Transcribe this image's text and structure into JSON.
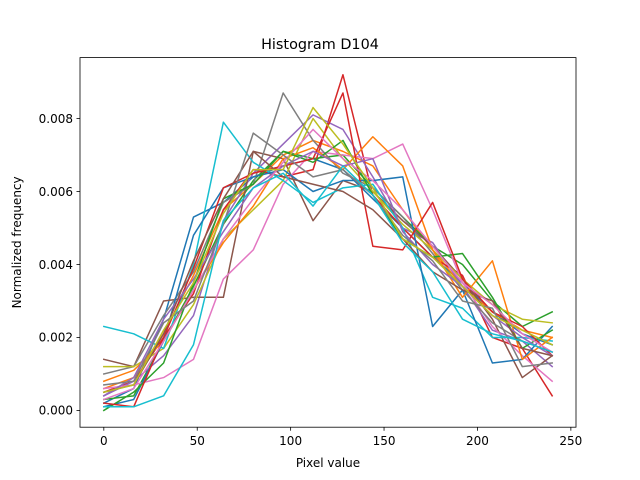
{
  "chart_data": {
    "type": "line",
    "title": "Histogram D104",
    "xlabel": "Pixel value",
    "ylabel": "Normalized frequency",
    "xlim": [
      -12.75,
      252.75
    ],
    "ylim": [
      -0.00046,
      0.00967
    ],
    "grid": false,
    "legend": "none",
    "x": [
      0,
      16,
      32,
      48,
      64,
      80,
      96,
      112,
      128,
      144,
      160,
      176,
      192,
      208,
      224,
      240
    ],
    "xticks": [
      {
        "value": 0,
        "label": "0"
      },
      {
        "value": 50,
        "label": "50"
      },
      {
        "value": 100,
        "label": "100"
      },
      {
        "value": 150,
        "label": "150"
      },
      {
        "value": 200,
        "label": "200"
      },
      {
        "value": 250,
        "label": "250"
      }
    ],
    "yticks": [
      {
        "value": 0.0,
        "label": "0.000"
      },
      {
        "value": 0.002,
        "label": "0.002"
      },
      {
        "value": 0.004,
        "label": "0.004"
      },
      {
        "value": 0.006,
        "label": "0.006"
      },
      {
        "value": 0.008,
        "label": "0.008"
      }
    ],
    "colors": [
      "#1f77b4",
      "#ff7f0e",
      "#2ca02c",
      "#d62728",
      "#9467bd",
      "#8c564b",
      "#e377c2",
      "#7f7f7f",
      "#bcbd22",
      "#17becf"
    ],
    "series": [
      {
        "values": [
          0.0002,
          0.0006,
          0.0025,
          0.0053,
          0.0057,
          0.0064,
          0.0067,
          0.0069,
          0.0066,
          0.0058,
          0.005,
          0.0042,
          0.0035,
          0.0027,
          0.0021,
          0.0018
        ]
      },
      {
        "values": [
          0.0006,
          0.0009,
          0.0021,
          0.0037,
          0.0055,
          0.0062,
          0.007,
          0.0074,
          0.0071,
          0.0067,
          0.0055,
          0.0044,
          0.0034,
          0.0027,
          0.0022,
          0.002
        ]
      },
      {
        "values": [
          0.0003,
          0.0004,
          0.0019,
          0.0034,
          0.0051,
          0.0063,
          0.0071,
          0.0069,
          0.007,
          0.0061,
          0.0053,
          0.0045,
          0.004,
          0.003,
          0.0023,
          0.0027
        ]
      },
      {
        "values": [
          0.0005,
          0.0008,
          0.002,
          0.0032,
          0.0055,
          0.0066,
          0.0064,
          0.0066,
          0.0092,
          0.0059,
          0.005,
          0.0042,
          0.0037,
          0.002,
          0.0017,
          0.0004
        ]
      },
      {
        "values": [
          0.0004,
          0.0008,
          0.0015,
          0.0026,
          0.0052,
          0.0065,
          0.0073,
          0.0081,
          0.0077,
          0.0064,
          0.005,
          0.0046,
          0.0034,
          0.0022,
          0.0019,
          0.0012
        ]
      },
      {
        "values": [
          0.0014,
          0.0012,
          0.003,
          0.0031,
          0.0031,
          0.0071,
          0.0069,
          0.0052,
          0.0063,
          0.006,
          0.0052,
          0.0045,
          0.0036,
          0.0025,
          0.0009,
          0.0015
        ]
      },
      {
        "values": [
          0.0006,
          0.0007,
          0.0009,
          0.0014,
          0.0036,
          0.0044,
          0.0062,
          0.0071,
          0.007,
          0.0069,
          0.0073,
          0.0055,
          0.0035,
          0.0023,
          0.0015,
          0.0008
        ]
      },
      {
        "values": [
          0.001,
          0.0012,
          0.0026,
          0.0038,
          0.0057,
          0.0062,
          0.0087,
          0.0074,
          0.0065,
          0.0061,
          0.0053,
          0.0043,
          0.0033,
          0.0024,
          0.0019,
          0.0016
        ]
      },
      {
        "values": [
          0.0012,
          0.0012,
          0.0017,
          0.0029,
          0.0047,
          0.0055,
          0.0063,
          0.008,
          0.0069,
          0.006,
          0.0051,
          0.0044,
          0.0036,
          0.0029,
          0.0025,
          0.0024
        ]
      },
      {
        "values": [
          0.0023,
          0.0021,
          0.0017,
          0.004,
          0.0079,
          0.0068,
          0.0063,
          0.0057,
          0.0061,
          0.0062,
          0.005,
          0.0031,
          0.0028,
          0.002,
          0.002,
          0.0019
        ]
      },
      {
        "values": [
          0.0001,
          0.0003,
          0.0019,
          0.0048,
          0.0061,
          0.0064,
          0.0066,
          0.006,
          0.0063,
          0.0063,
          0.0064,
          0.0023,
          0.0033,
          0.0013,
          0.0014,
          0.0023
        ]
      },
      {
        "values": [
          0.0008,
          0.0011,
          0.0019,
          0.0033,
          0.0046,
          0.0056,
          0.0069,
          0.0072,
          0.0066,
          0.0075,
          0.0067,
          0.0044,
          0.0031,
          0.0041,
          0.0014,
          0.002
        ]
      },
      {
        "values": [
          0.0,
          0.0005,
          0.0013,
          0.0035,
          0.0058,
          0.0062,
          0.0071,
          0.0068,
          0.0074,
          0.0059,
          0.0047,
          0.0042,
          0.0043,
          0.0031,
          0.0017,
          0.0022
        ]
      },
      {
        "values": [
          0.0002,
          0.0001,
          0.002,
          0.0039,
          0.0061,
          0.0065,
          0.0067,
          0.0069,
          0.0087,
          0.0045,
          0.0044,
          0.0057,
          0.0036,
          0.0027,
          0.0023,
          0.0015
        ]
      },
      {
        "values": [
          0.0004,
          0.0009,
          0.0025,
          0.0036,
          0.0049,
          0.0061,
          0.0067,
          0.0071,
          0.0067,
          0.0069,
          0.0049,
          0.004,
          0.0034,
          0.0026,
          0.002,
          0.0015
        ]
      },
      {
        "values": [
          0.0005,
          0.0007,
          0.0021,
          0.0041,
          0.0058,
          0.0071,
          0.0064,
          0.0062,
          0.006,
          0.0055,
          0.0047,
          0.0038,
          0.0033,
          0.003,
          0.0017,
          0.0015
        ]
      },
      {
        "values": [
          0.0003,
          0.0006,
          0.0019,
          0.0033,
          0.0047,
          0.0058,
          0.0068,
          0.0077,
          0.0069,
          0.0063,
          0.0055,
          0.0045,
          0.0035,
          0.0029,
          0.0021,
          0.0016
        ]
      },
      {
        "values": [
          0.0007,
          0.0008,
          0.0024,
          0.003,
          0.0051,
          0.0076,
          0.007,
          0.0064,
          0.0066,
          0.0059,
          0.0048,
          0.0041,
          0.003,
          0.0028,
          0.0012,
          0.0013
        ]
      },
      {
        "values": [
          0.0005,
          0.0007,
          0.0022,
          0.0035,
          0.0054,
          0.0066,
          0.0066,
          0.0083,
          0.0073,
          0.0061,
          0.0047,
          0.0042,
          0.0034,
          0.0026,
          0.0022,
          0.0018
        ]
      },
      {
        "values": [
          0.0001,
          0.0001,
          0.0004,
          0.0018,
          0.0052,
          0.0061,
          0.0065,
          0.0056,
          0.0067,
          0.0059,
          0.0046,
          0.0038,
          0.0025,
          0.0021,
          0.0019,
          0.0016
        ]
      }
    ]
  }
}
